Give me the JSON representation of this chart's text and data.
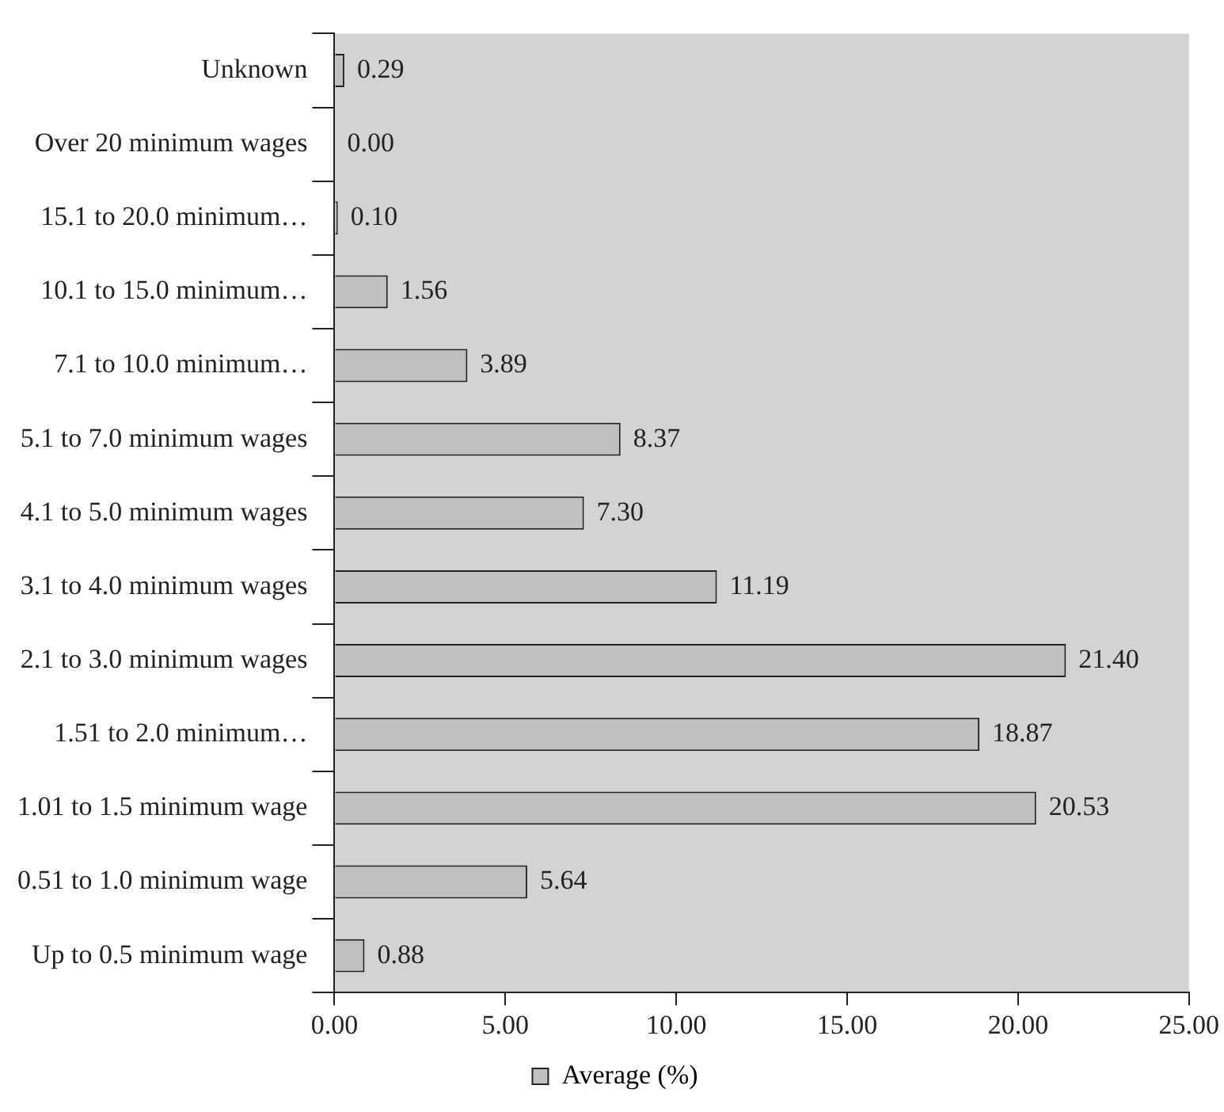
{
  "chart_data": {
    "type": "bar",
    "orientation": "horizontal",
    "categories": [
      "Unknown",
      "Over 20 minimum wages",
      "15.1 to 20.0 minimum…",
      "10.1 to 15.0 minimum…",
      "7.1 to 10.0 minimum…",
      "5.1 to 7.0 minimum wages",
      "4.1 to 5.0 minimum wages",
      "3.1 to 4.0 minimum wages",
      "2.1 to 3.0 minimum wages",
      "1.51 to 2.0 minimum…",
      "1.01 to 1.5 minimum wage",
      "0.51 to 1.0 minimum wage",
      "Up to 0.5 minimum wage"
    ],
    "series": [
      {
        "name": "Average (%)",
        "color": "#c0c0c0",
        "values": [
          0.29,
          0.0,
          0.1,
          1.56,
          3.89,
          8.37,
          7.3,
          11.19,
          21.4,
          18.87,
          20.53,
          5.64,
          0.88
        ],
        "value_labels": [
          "0.29",
          "0.00",
          "0.10",
          "1.56",
          "3.89",
          "8.37",
          "7.30",
          "11.19",
          "21.40",
          "18.87",
          "20.53",
          "5.64",
          "0.88"
        ]
      }
    ],
    "xlim": [
      0,
      25
    ],
    "xticks": [
      {
        "value": 0,
        "label": "0.00"
      },
      {
        "value": 5,
        "label": "5.00"
      },
      {
        "value": 10,
        "label": "10.00"
      },
      {
        "value": 15,
        "label": "15.00"
      },
      {
        "value": 20,
        "label": "20.00"
      },
      {
        "value": 25,
        "label": "25.00"
      }
    ],
    "grid": false,
    "legend": "bottom"
  }
}
